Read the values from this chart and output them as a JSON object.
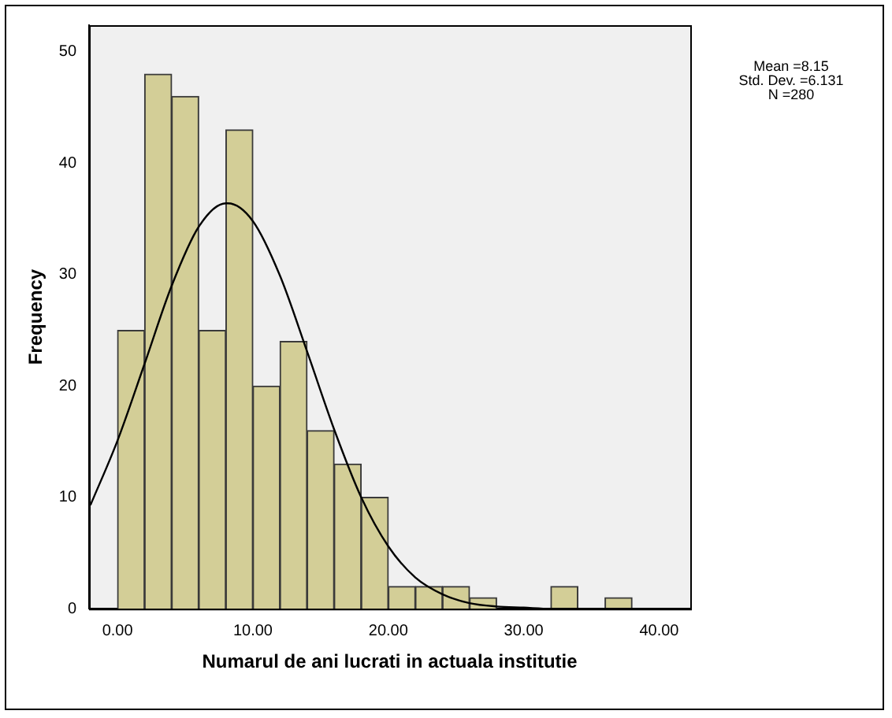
{
  "chart_data": {
    "type": "histogram",
    "xlabel": "Numarul de ani lucrati in actuala institutie",
    "ylabel": "Frequency",
    "bins": [
      0,
      2,
      4,
      6,
      8,
      10,
      12,
      14,
      16,
      18,
      20,
      22,
      24,
      26,
      28,
      30,
      32,
      34,
      36,
      38
    ],
    "values": [
      25,
      48,
      46,
      25,
      43,
      20,
      24,
      16,
      13,
      10,
      2,
      2,
      2,
      1,
      0,
      0,
      2,
      0,
      1
    ],
    "color": "#d3ce97",
    "series": [
      {
        "type": "line",
        "color": "#000000",
        "x": [
          -2,
          0,
          2,
          4,
          6,
          8,
          8.15,
          10,
          12,
          14,
          16,
          18,
          20,
          22,
          24,
          26,
          28,
          30,
          32,
          34,
          36,
          38,
          40,
          42
        ],
        "values": [
          9.3,
          15.1,
          22,
          29,
          34.3,
          36.4,
          36.4,
          34.8,
          29.9,
          23.1,
          16.1,
          10,
          5.6,
          2.8,
          1.3,
          0.5,
          0.2,
          0.1,
          0,
          0,
          0,
          0,
          0,
          0
        ]
      }
    ],
    "xlim": [
      -2.1,
      42.3
    ],
    "ylim": [
      0,
      52.4
    ],
    "xticks": [
      {
        "value": 0,
        "label": "0.00"
      },
      {
        "value": 10,
        "label": "10.00"
      },
      {
        "value": 20,
        "label": "20.00"
      },
      {
        "value": 30,
        "label": "30.00"
      },
      {
        "value": 40,
        "label": "40.00"
      }
    ],
    "yticks": [
      0,
      10,
      20,
      30,
      40,
      50
    ],
    "grid": false,
    "legend": false,
    "marker": "none",
    "line_style": "solid",
    "annotations": [
      "Mean =8.15",
      "Std. Dev. =6.131",
      "N =280"
    ]
  }
}
